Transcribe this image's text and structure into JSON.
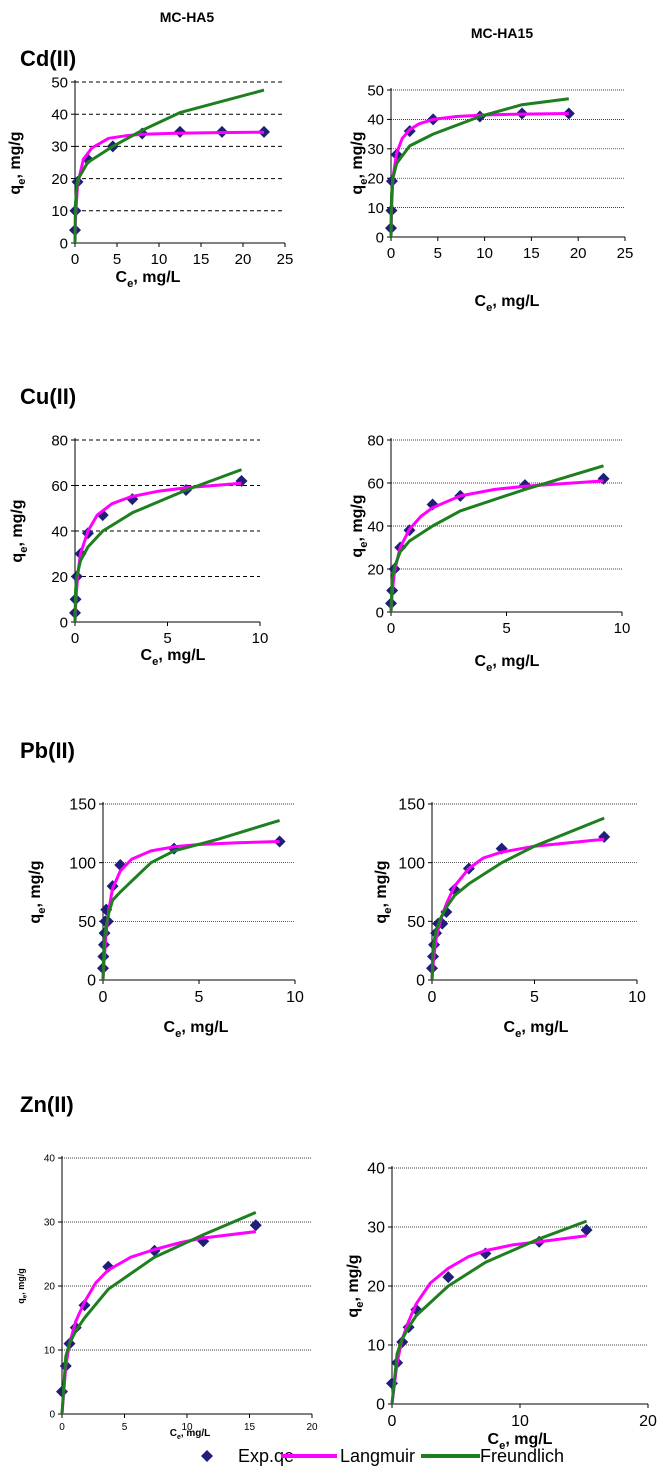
{
  "column_titles": [
    "MC-HA5",
    "MC-HA15"
  ],
  "row_titles": [
    "Cd(II)",
    "Cu(II)",
    "Pb(II)",
    "Zn(II)"
  ],
  "legend": {
    "entries": [
      {
        "label": "Exp.qe",
        "color": "#1F1F7A",
        "marker": "diamond"
      },
      {
        "label": "Langmuir",
        "color": "#FF00FF",
        "marker": "line"
      },
      {
        "label": "Freundlich",
        "color": "#1E7F1E",
        "marker": "line"
      }
    ]
  },
  "chart_data": [
    {
      "type": "scatter",
      "row": "Cd(II)",
      "column": "MC-HA5",
      "xlabel": "Ce, mg/L",
      "ylabel": "qe, mg/g",
      "xlim": [
        0,
        25
      ],
      "ylim": [
        0,
        50
      ],
      "xticks": [
        0,
        5,
        10,
        15,
        20,
        25
      ],
      "yticks": [
        0,
        10,
        20,
        30,
        40,
        50
      ],
      "grid": "dashed",
      "series": [
        {
          "name": "Exp.qe",
          "x": [
            0.0,
            0.05,
            0.3,
            1.5,
            4.5,
            8,
            12.5,
            17.5,
            22.5
          ],
          "y": [
            4,
            10,
            19,
            26,
            30,
            34,
            34.5,
            34.5,
            34.5
          ]
        },
        {
          "name": "Langmuir",
          "x": [
            0,
            0.05,
            0.3,
            1,
            2,
            4,
            6,
            8,
            12,
            17,
            22.5
          ],
          "y": [
            0,
            7,
            18,
            26,
            29.5,
            32.5,
            33.3,
            33.8,
            34.1,
            34.3,
            34.4
          ]
        },
        {
          "name": "Freundlich",
          "x": [
            0,
            0.05,
            0.3,
            1.5,
            4.5,
            8,
            12.5,
            17.5,
            22.5
          ],
          "y": [
            0,
            12,
            19.5,
            25,
            30,
            35,
            40.5,
            44,
            47.5
          ]
        }
      ]
    },
    {
      "type": "scatter",
      "row": "Cd(II)",
      "column": "MC-HA15",
      "xlabel": "Ce, mg/L",
      "ylabel": "qe, mg/g",
      "xlim": [
        0,
        25
      ],
      "ylim": [
        0,
        50
      ],
      "xticks": [
        0,
        5,
        10,
        15,
        20,
        25
      ],
      "yticks": [
        0,
        10,
        20,
        30,
        40,
        50
      ],
      "grid": "solid",
      "series": [
        {
          "name": "Exp.qe",
          "x": [
            0.0,
            0.05,
            0.1,
            0.6,
            2,
            4.5,
            9.5,
            14,
            19
          ],
          "y": [
            3,
            9,
            19,
            28,
            36,
            40,
            41,
            42,
            42
          ]
        },
        {
          "name": "Langmuir",
          "x": [
            0,
            0.05,
            0.2,
            0.6,
            1.2,
            2,
            3,
            4.5,
            7,
            10,
            14,
            19
          ],
          "y": [
            0,
            9,
            20,
            28.5,
            33.5,
            36.5,
            38.5,
            40,
            41,
            41.5,
            41.8,
            42
          ]
        },
        {
          "name": "Freundlich",
          "x": [
            0,
            0.05,
            0.2,
            0.6,
            2,
            4.5,
            9.5,
            14,
            19
          ],
          "y": [
            0,
            14,
            20,
            25,
            31,
            35,
            41,
            45,
            47
          ]
        }
      ]
    },
    {
      "type": "scatter",
      "row": "Cu(II)",
      "column": "MC-HA5",
      "xlabel": "Ce, mg/L",
      "ylabel": "qe, mg/g",
      "xlim": [
        0,
        10
      ],
      "ylim": [
        0,
        80
      ],
      "xticks": [
        0,
        5,
        10
      ],
      "yticks": [
        0,
        20,
        40,
        60,
        80
      ],
      "grid": "dashed",
      "series": [
        {
          "name": "Exp.qe",
          "x": [
            0.0,
            0.03,
            0.1,
            0.3,
            0.7,
            1.5,
            3.1,
            6,
            9
          ],
          "y": [
            4,
            10,
            20,
            30,
            39,
            47,
            54,
            58,
            62
          ]
        },
        {
          "name": "Langmuir",
          "x": [
            0,
            0.05,
            0.15,
            0.3,
            0.7,
            1.2,
            2,
            3,
            4.5,
            6,
            9
          ],
          "y": [
            0,
            10,
            21,
            30,
            40,
            47,
            52,
            55,
            57.5,
            59,
            61
          ]
        },
        {
          "name": "Freundlich",
          "x": [
            0,
            0.03,
            0.1,
            0.3,
            0.7,
            1.5,
            3.1,
            6,
            9
          ],
          "y": [
            0,
            14,
            20,
            27,
            33,
            40,
            48,
            58,
            67
          ]
        }
      ]
    },
    {
      "type": "scatter",
      "row": "Cu(II)",
      "column": "MC-HA15",
      "xlabel": "Ce, mg/L",
      "ylabel": "qe, mg/g",
      "xlim": [
        0,
        10
      ],
      "ylim": [
        0,
        80
      ],
      "xticks": [
        0,
        5,
        10
      ],
      "yticks": [
        0,
        20,
        40,
        60,
        80
      ],
      "grid": "solid",
      "series": [
        {
          "name": "Exp.qe",
          "x": [
            0.0,
            0.05,
            0.15,
            0.4,
            0.8,
            1.8,
            3,
            5.8,
            9.2
          ],
          "y": [
            4,
            10,
            20,
            30,
            38,
            50,
            54,
            59,
            62
          ]
        },
        {
          "name": "Langmuir",
          "x": [
            0,
            0.05,
            0.15,
            0.4,
            0.8,
            1.3,
            1.8,
            3,
            4.5,
            5.8,
            9.2
          ],
          "y": [
            0,
            9,
            19,
            30,
            38.5,
            44.5,
            48.5,
            54,
            57,
            58.5,
            61
          ]
        },
        {
          "name": "Freundlich",
          "x": [
            0,
            0.05,
            0.15,
            0.4,
            0.8,
            1.8,
            3,
            5.8,
            9.2
          ],
          "y": [
            0,
            15,
            21,
            28,
            33,
            40,
            47,
            57,
            68
          ]
        }
      ]
    },
    {
      "type": "scatter",
      "row": "Pb(II)",
      "column": "MC-HA5",
      "xlabel": "Ce, mg/L",
      "ylabel": "qe, mg/g",
      "xlim": [
        0,
        10
      ],
      "ylim": [
        0,
        150
      ],
      "xticks": [
        0,
        5,
        10
      ],
      "yticks": [
        0,
        50,
        100,
        150
      ],
      "grid": "solid",
      "series": [
        {
          "name": "Exp.qe",
          "x": [
            0.0,
            0.02,
            0.05,
            0.08,
            0.12,
            0.17,
            0.25,
            0.5,
            0.9,
            3.7,
            9.2
          ],
          "y": [
            10,
            20,
            30,
            40,
            50,
            60,
            50,
            80,
            98,
            112,
            118
          ]
        },
        {
          "name": "Langmuir",
          "x": [
            0,
            0.05,
            0.15,
            0.3,
            0.5,
            0.9,
            1.5,
            2.5,
            3.7,
            5,
            7,
            9.2
          ],
          "y": [
            0,
            15,
            38,
            60,
            78,
            93,
            103,
            110,
            113.5,
            115.5,
            117,
            118
          ]
        },
        {
          "name": "Freundlich",
          "x": [
            0,
            0.05,
            0.15,
            0.3,
            0.5,
            0.9,
            2.5,
            3.7,
            6,
            9.2
          ],
          "y": [
            0,
            30,
            45,
            57,
            68,
            75,
            100,
            110,
            120,
            136
          ]
        }
      ]
    },
    {
      "type": "scatter",
      "row": "Pb(II)",
      "column": "MC-HA15",
      "xlabel": "Ce, mg/L",
      "ylabel": "qe, mg/g",
      "xlim": [
        0,
        10
      ],
      "ylim": [
        0,
        150
      ],
      "xticks": [
        0,
        5,
        10
      ],
      "yticks": [
        0,
        50,
        100,
        150
      ],
      "grid": "solid",
      "series": [
        {
          "name": "Exp.qe",
          "x": [
            0.0,
            0.05,
            0.1,
            0.2,
            0.3,
            0.5,
            0.7,
            1.1,
            1.8,
            3.4,
            8.4
          ],
          "y": [
            10,
            20,
            30,
            40,
            48,
            48,
            58,
            77,
            95,
            112,
            122
          ]
        },
        {
          "name": "Langmuir",
          "x": [
            0,
            0.05,
            0.1,
            0.2,
            0.4,
            0.7,
            1.1,
            1.8,
            2.5,
            3.4,
            5,
            8.4
          ],
          "y": [
            0,
            12,
            22,
            35,
            50,
            65,
            80,
            95,
            104,
            109,
            114,
            120
          ]
        },
        {
          "name": "Freundlich",
          "x": [
            0,
            0.05,
            0.1,
            0.2,
            0.4,
            0.7,
            1.1,
            1.8,
            3.4,
            5,
            8.4
          ],
          "y": [
            0,
            25,
            33,
            42,
            52,
            62,
            72,
            82,
            100,
            114,
            138
          ]
        }
      ]
    },
    {
      "type": "scatter",
      "row": "Zn(II)",
      "column": "MC-HA5",
      "xlabel": "Ce, mg/L",
      "ylabel": "qe, mg/g",
      "xlim": [
        0,
        20
      ],
      "ylim": [
        0,
        40
      ],
      "xticks": [
        0,
        5,
        10,
        15,
        20
      ],
      "yticks": [
        0,
        10,
        20,
        30,
        40
      ],
      "grid": "solid",
      "series": [
        {
          "name": "Exp.qe",
          "x": [
            0.0,
            0.3,
            0.6,
            1.1,
            1.8,
            3.7,
            7.4,
            11.3,
            15.5
          ],
          "y": [
            3.5,
            7.5,
            11,
            13.5,
            17,
            23,
            25.5,
            27,
            29.5
          ]
        },
        {
          "name": "Langmuir",
          "x": [
            0,
            0.3,
            0.6,
            1.1,
            1.8,
            2.7,
            3.7,
            5.5,
            7.4,
            9.5,
            11.3,
            15.5
          ],
          "y": [
            0,
            7.5,
            11,
            14.5,
            17.5,
            20.5,
            22.5,
            24.5,
            25.7,
            26.8,
            27.5,
            28.5
          ]
        },
        {
          "name": "Freundlich",
          "x": [
            0,
            0.3,
            0.6,
            1.1,
            1.8,
            3.7,
            7.4,
            11.3,
            15.5
          ],
          "y": [
            0,
            9,
            11,
            13,
            15,
            19.5,
            24.5,
            28,
            31.5
          ]
        }
      ]
    },
    {
      "type": "scatter",
      "row": "Zn(II)",
      "column": "MC-HA15",
      "xlabel": "Ce, mg/L",
      "ylabel": "qe, mg/g",
      "xlim": [
        0,
        20
      ],
      "ylim": [
        0,
        40
      ],
      "xticks": [
        0,
        10,
        20
      ],
      "yticks": [
        0,
        10,
        20,
        30,
        40
      ],
      "grid": "solid",
      "series": [
        {
          "name": "Exp.qe",
          "x": [
            0.0,
            0.4,
            0.8,
            1.3,
            1.9,
            4.4,
            7.3,
            11.5,
            15.2
          ],
          "y": [
            3.5,
            7,
            10.5,
            13,
            16,
            21.5,
            25.5,
            27.5,
            29.5
          ]
        },
        {
          "name": "Langmuir",
          "x": [
            0,
            0.4,
            0.8,
            1.3,
            1.9,
            3,
            4.4,
            6,
            7.3,
            9.5,
            11.5,
            15.2
          ],
          "y": [
            0,
            7,
            11,
            14,
            17,
            20.5,
            23,
            25,
            26,
            27,
            27.5,
            28.5
          ]
        },
        {
          "name": "Freundlich",
          "x": [
            0,
            0.4,
            0.8,
            1.3,
            1.9,
            4.4,
            7.3,
            11.5,
            15.2
          ],
          "y": [
            0,
            8.5,
            11,
            13,
            15,
            20,
            24,
            28,
            31
          ]
        }
      ]
    }
  ]
}
